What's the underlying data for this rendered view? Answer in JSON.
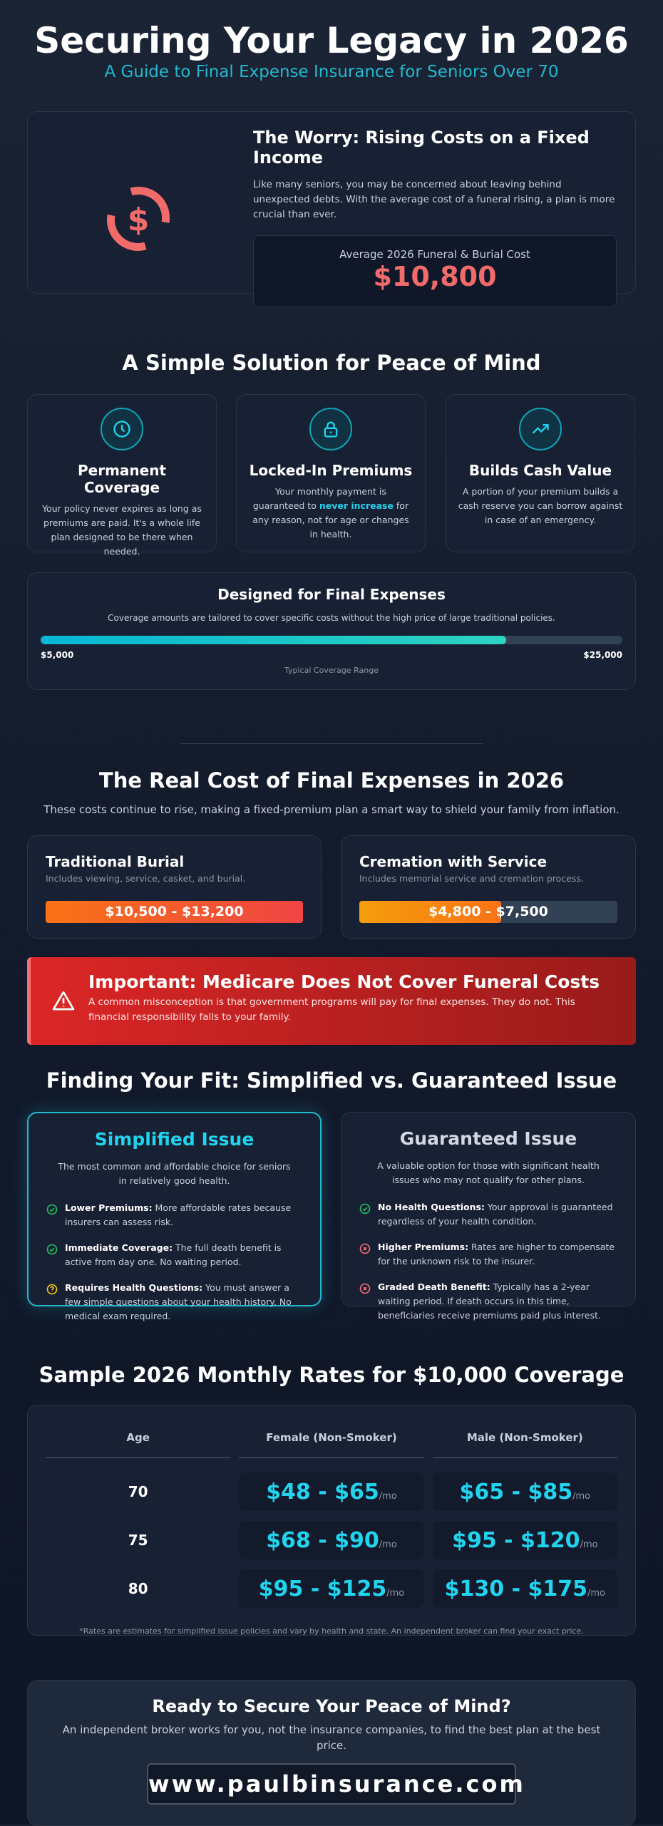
{
  "header": {
    "title": "Securing Your Legacy in 2026",
    "subtitle": "A Guide to Final Expense Insurance for Seniors Over 70"
  },
  "worry": {
    "icon": "dollar-cycle-icon",
    "title": "The Worry: Rising Costs on a Fixed Income",
    "body": "Like many seniors, you may be concerned about leaving behind unexpected debts. With the average cost of a funeral rising, a plan is more crucial than ever.",
    "stat_label": "Average 2026 Funeral & Burial Cost",
    "stat_value": "$10,800"
  },
  "solution": {
    "heading": "A Simple Solution for Peace of Mind",
    "features": [
      {
        "icon": "clock-icon",
        "title": "Permanent Coverage",
        "body": "Your policy never expires as long as premiums are paid. It's a whole life plan designed to be there when needed."
      },
      {
        "icon": "lock-icon",
        "title": "Locked-In Premiums",
        "body_pre": "Your monthly payment is guaranteed to ",
        "body_em": "never increase",
        "body_post": " for any reason, not for age or changes in health."
      },
      {
        "icon": "trend-up-icon",
        "title": "Builds Cash Value",
        "body": "A portion of your premium builds a cash reserve you can borrow against in case of an emergency."
      }
    ],
    "range": {
      "title": "Designed for Final Expenses",
      "body": "Coverage amounts are tailored to cover specific costs without the high price of large traditional policies.",
      "min": "$5,000",
      "max": "$25,000",
      "fill_percent": 80,
      "caption": "Typical Coverage Range"
    }
  },
  "costs": {
    "heading": "The Real Cost of Final Expenses in 2026",
    "subtitle": "These costs continue to rise, making a fixed-premium plan a smart way to shield your family from inflation.",
    "items": [
      {
        "title": "Traditional Burial",
        "desc": "Includes viewing, service, casket, and burial.",
        "range": "$10,500 - $13,200",
        "fill_percent": 100
      },
      {
        "title": "Cremation with Service",
        "desc": "Includes memorial service and cremation process.",
        "range": "$4,800 - $7,500",
        "fill_percent": 55
      }
    ]
  },
  "alert": {
    "icon": "warning-icon",
    "title": "Important: Medicare Does Not Cover Funeral Costs",
    "body": "A common misconception is that government programs will pay for final expenses. They do not. This financial responsibility falls to your family."
  },
  "fit": {
    "heading": "Finding Your Fit: Simplified vs. Guaranteed Issue",
    "simplified": {
      "title": "Simplified Issue",
      "desc": "The most common and affordable choice for seniors in relatively good health.",
      "items": [
        {
          "icon": "check-circle-icon",
          "bold": "Lower Premiums:",
          "text": " More affordable rates because insurers can assess risk."
        },
        {
          "icon": "check-circle-icon",
          "bold": "Immediate Coverage:",
          "text": " The full death benefit is active from day one. No waiting period."
        },
        {
          "icon": "question-circle-icon",
          "bold": "Requires Health Questions:",
          "text": " You must answer a few simple questions about your health history. No medical exam required."
        }
      ]
    },
    "guaranteed": {
      "title": "Guaranteed Issue",
      "desc": "A valuable option for those with significant health issues who may not qualify for other plans.",
      "items": [
        {
          "icon": "check-circle-icon",
          "bold": "No Health Questions:",
          "text": " Your approval is guaranteed regardless of your health condition."
        },
        {
          "icon": "x-circle-icon",
          "bold": "Higher Premiums:",
          "text": " Rates are higher to compensate for the unknown risk to the insurer."
        },
        {
          "icon": "x-circle-icon",
          "bold": "Graded Death Benefit:",
          "text": " Typically has a 2-year waiting period. If death occurs in this time, beneficiaries receive premiums paid plus interest."
        }
      ]
    }
  },
  "rates": {
    "heading": "Sample 2026 Monthly Rates for $10,000 Coverage",
    "columns": [
      "Age",
      "Female (Non-Smoker)",
      "Male (Non-Smoker)"
    ],
    "unit": "/mo",
    "rows": [
      {
        "age": "70",
        "female": "$48 - $65",
        "male": "$65 - $85"
      },
      {
        "age": "75",
        "female": "$68 - $90",
        "male": "$95 - $120"
      },
      {
        "age": "80",
        "female": "$95 - $125",
        "male": "$130 - $175"
      }
    ],
    "note": "*Rates are estimates for simplified issue policies and vary by health and state. An independent broker can find your exact price."
  },
  "cta": {
    "title": "Ready to Secure Your Peace of Mind?",
    "body": "An independent broker works for you, not the insurance companies, to find the best plan at the best price.",
    "url": "www.paulbinsurance.com"
  }
}
